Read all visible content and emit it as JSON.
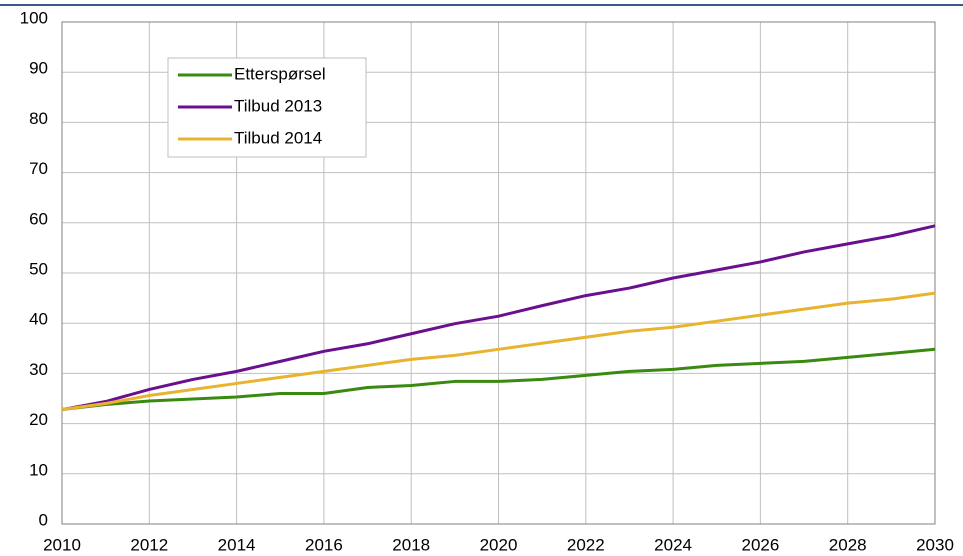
{
  "chart_data": {
    "type": "line",
    "x": [
      2010,
      2011,
      2012,
      2013,
      2014,
      2015,
      2016,
      2017,
      2018,
      2019,
      2020,
      2021,
      2022,
      2023,
      2024,
      2025,
      2026,
      2027,
      2028,
      2029,
      2030
    ],
    "series": [
      {
        "name": "Etterspørsel",
        "color": "#3a8a12",
        "values": [
          22.8,
          23.8,
          24.5,
          24.9,
          25.3,
          26.0,
          26.0,
          27.2,
          27.6,
          28.4,
          28.4,
          28.8,
          29.6,
          30.4,
          30.8,
          31.6,
          32.0,
          32.4,
          33.2,
          34.0,
          34.8
        ]
      },
      {
        "name": "Tilbud 2013",
        "color": "#6a0f8e",
        "values": [
          22.8,
          24.4,
          26.8,
          28.8,
          30.4,
          32.4,
          34.4,
          35.9,
          37.9,
          39.9,
          41.4,
          43.5,
          45.5,
          47.0,
          49.0,
          50.6,
          52.2,
          54.2,
          55.8,
          57.4,
          59.4
        ]
      },
      {
        "name": "Tilbud 2014",
        "color": "#e8b430",
        "values": [
          22.8,
          24.0,
          25.6,
          26.8,
          28.0,
          29.2,
          30.4,
          31.6,
          32.8,
          33.6,
          34.8,
          36.0,
          37.2,
          38.4,
          39.2,
          40.4,
          41.6,
          42.8,
          44.0,
          44.8,
          46.0
        ]
      }
    ],
    "xlim": [
      2010,
      2030
    ],
    "xticks": [
      2010,
      2012,
      2014,
      2016,
      2018,
      2020,
      2022,
      2024,
      2026,
      2028,
      2030
    ],
    "ylim": [
      0,
      100
    ],
    "yticks": [
      0,
      10,
      20,
      30,
      40,
      50,
      60,
      70,
      80,
      90,
      100
    ],
    "grid": true,
    "legend": "upper left"
  }
}
